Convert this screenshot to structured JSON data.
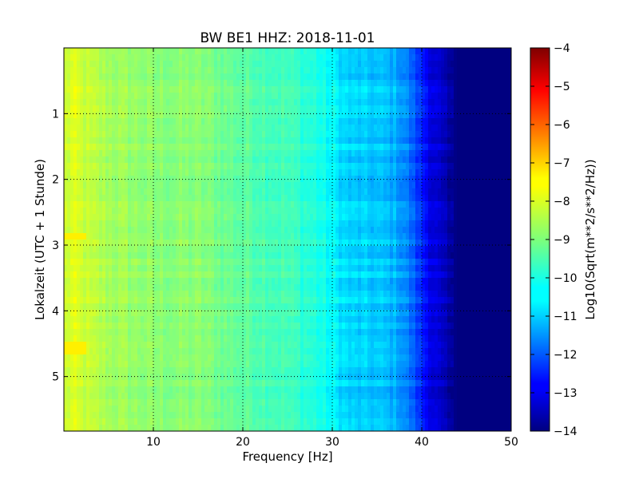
{
  "chart_data": {
    "type": "heatmap",
    "title": "BW BE1 HHZ: 2018-11-01",
    "xlabel": "Frequency [Hz]",
    "ylabel": "Lokalzeit (UTC + 1 Stunde)",
    "xlim": [
      0,
      50
    ],
    "ylim": [
      0,
      5.83
    ],
    "y_inverted": true,
    "x_ticks": [
      10,
      20,
      30,
      40,
      50
    ],
    "x_tick_labels": [
      "10",
      "20",
      "30",
      "40",
      "50"
    ],
    "y_ticks": [
      1,
      2,
      3,
      4,
      5
    ],
    "y_tick_labels": [
      "1",
      "2",
      "3",
      "4",
      "5"
    ],
    "grid": true,
    "colormap": "jet",
    "colorbar": {
      "label": "Log10(Sqrt(m**2/s**2/Hz))",
      "range": [
        -14,
        -4
      ],
      "ticks": [
        -4,
        -5,
        -6,
        -7,
        -8,
        -9,
        -10,
        -11,
        -12,
        -13,
        -14
      ],
      "tick_labels": [
        "−4",
        "−5",
        "−6",
        "−7",
        "−8",
        "−9",
        "−10",
        "−11",
        "−12",
        "−13",
        "−14"
      ]
    },
    "spectral_profile": {
      "frequency_hz": [
        0,
        1,
        3,
        5,
        10,
        15,
        20,
        25,
        28,
        30,
        32,
        35,
        37,
        38,
        39,
        40,
        41,
        42,
        43,
        44,
        50
      ],
      "value": [
        -8.3,
        -8.1,
        -8.4,
        -8.6,
        -8.9,
        -8.9,
        -9.3,
        -9.6,
        -9.9,
        -10.3,
        -10.7,
        -10.8,
        -11.0,
        -11.3,
        -11.8,
        -12.4,
        -12.9,
        -13.3,
        -13.7,
        -14.0,
        -14.0
      ]
    },
    "features": [
      {
        "time": 2.85,
        "frequency_hz": 1,
        "value": -7.6
      },
      {
        "time": 4.55,
        "frequency_hz": 1,
        "value": -7.6
      }
    ]
  }
}
